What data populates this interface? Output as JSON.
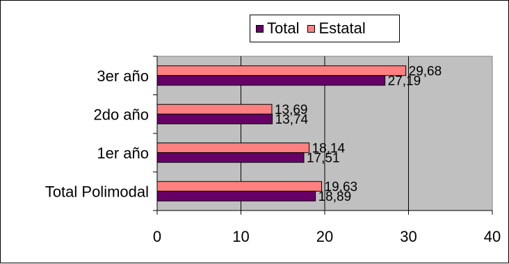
{
  "chart_data": {
    "type": "bar",
    "orientation": "horizontal",
    "categories": [
      "Total Polimodal",
      "1er año",
      "2do año",
      "3er año"
    ],
    "series": [
      {
        "name": "Total",
        "color": "#660066",
        "values": [
          18.89,
          17.51,
          13.74,
          27.19
        ],
        "value_labels": [
          "18,89",
          "17,51",
          "13,74",
          "27,19"
        ]
      },
      {
        "name": "Estatal",
        "color": "#ff8080",
        "values": [
          19.63,
          18.14,
          13.69,
          29.68
        ],
        "value_labels": [
          "19,63",
          "18,14",
          "13,69",
          "29,68"
        ]
      }
    ],
    "xlim": [
      0,
      40
    ],
    "x_ticks": [
      "0",
      "10",
      "20",
      "30",
      "40"
    ],
    "grid": true,
    "plot_background": "#c0c0c0",
    "legend_position": "top"
  }
}
